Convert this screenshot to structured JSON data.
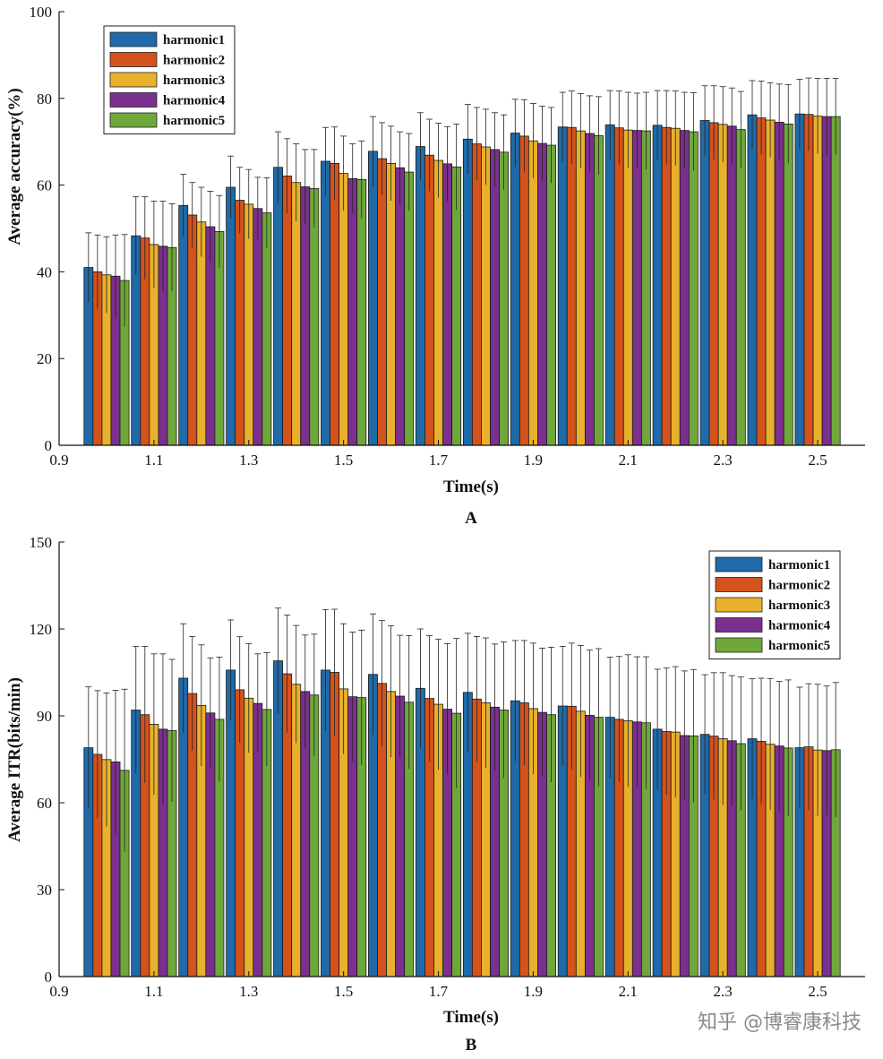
{
  "colors": {
    "harmonic1": "#1f6aa8",
    "harmonic2": "#d4531c",
    "harmonic3": "#e9b12b",
    "harmonic4": "#7b2f8e",
    "harmonic5": "#6fa83a"
  },
  "watermark": "知乎 @博睿康科技",
  "chart_data": [
    {
      "type": "bar",
      "panel_label": "A",
      "title": "",
      "xlabel": "Time(s)",
      "ylabel": "Average accuracy(%)",
      "xlim": [
        0.9,
        2.6
      ],
      "ylim": [
        0,
        100
      ],
      "xticks": [
        "0.9",
        "1.1",
        "1.3",
        "1.5",
        "1.7",
        "1.9",
        "2.1",
        "2.3",
        "2.5"
      ],
      "yticks": [
        "0",
        "20",
        "40",
        "60",
        "80",
        "100"
      ],
      "legend_position": "top-left",
      "categories": [
        1.0,
        1.1,
        1.2,
        1.3,
        1.4,
        1.5,
        1.6,
        1.7,
        1.8,
        1.9,
        2.0,
        2.1,
        2.2,
        2.3,
        2.4,
        2.5
      ],
      "series": [
        {
          "name": "harmonic1",
          "values": [
            41.0,
            48.3,
            55.3,
            59.5,
            64.1,
            65.5,
            67.8,
            68.9,
            70.6,
            72.0,
            73.4,
            73.9,
            73.8,
            74.9,
            76.2,
            76.4
          ],
          "errors": [
            8.0,
            9.0,
            7.2,
            7.2,
            8.2,
            7.8,
            8.0,
            7.8,
            8.0,
            7.8,
            8.0,
            7.9,
            8.0,
            8.0,
            7.9,
            8.0
          ]
        },
        {
          "name": "harmonic2",
          "values": [
            40.0,
            47.8,
            53.1,
            56.5,
            62.1,
            65.0,
            66.1,
            66.9,
            69.5,
            71.3,
            73.3,
            73.2,
            73.3,
            74.4,
            75.5,
            76.3
          ],
          "errors": [
            8.5,
            9.5,
            7.5,
            7.6,
            8.6,
            8.4,
            8.3,
            8.3,
            8.4,
            8.4,
            8.4,
            8.5,
            8.5,
            8.5,
            8.5,
            8.4
          ]
        },
        {
          "name": "harmonic3",
          "values": [
            39.3,
            46.3,
            51.5,
            55.6,
            60.6,
            62.7,
            65.0,
            65.7,
            68.8,
            70.2,
            72.5,
            72.7,
            73.1,
            74.0,
            75.0,
            75.9
          ],
          "errors": [
            8.8,
            10.0,
            8.0,
            8.0,
            8.9,
            8.6,
            8.6,
            8.6,
            8.7,
            8.6,
            8.6,
            8.7,
            8.6,
            8.7,
            8.6,
            8.7
          ]
        },
        {
          "name": "harmonic4",
          "values": [
            39.0,
            45.9,
            50.4,
            54.6,
            59.6,
            61.5,
            64.0,
            64.9,
            68.2,
            69.6,
            71.9,
            72.6,
            72.6,
            73.6,
            74.5,
            75.8
          ],
          "errors": [
            9.5,
            10.4,
            8.2,
            7.2,
            8.6,
            8.0,
            8.3,
            8.6,
            8.5,
            8.6,
            8.7,
            8.6,
            8.8,
            8.8,
            8.8,
            8.8
          ]
        },
        {
          "name": "harmonic5",
          "values": [
            38.0,
            45.6,
            49.3,
            53.6,
            59.2,
            61.3,
            63.0,
            64.2,
            67.6,
            69.2,
            71.4,
            72.5,
            72.3,
            72.8,
            74.1,
            75.8
          ],
          "errors": [
            10.6,
            10.1,
            8.3,
            8.1,
            9.0,
            8.9,
            8.9,
            9.9,
            8.6,
            8.7,
            9.0,
            8.9,
            9.0,
            8.8,
            9.1,
            8.8
          ]
        }
      ]
    },
    {
      "type": "bar",
      "panel_label": "B",
      "title": "",
      "xlabel": "Time(s)",
      "ylabel": "Average ITR(bits/min)",
      "xlim": [
        0.9,
        2.6
      ],
      "ylim": [
        0,
        150
      ],
      "xticks": [
        "0.9",
        "1.1",
        "1.3",
        "1.5",
        "1.7",
        "1.9",
        "2.1",
        "2.3",
        "2.5"
      ],
      "yticks": [
        "0",
        "30",
        "60",
        "90",
        "120",
        "150"
      ],
      "legend_position": "top-right",
      "categories": [
        1.0,
        1.1,
        1.2,
        1.3,
        1.4,
        1.5,
        1.6,
        1.7,
        1.8,
        1.9,
        2.0,
        2.1,
        2.2,
        2.3,
        2.4,
        2.5
      ],
      "series": [
        {
          "name": "harmonic1",
          "values": [
            79.0,
            92.0,
            103.0,
            105.8,
            109.0,
            105.8,
            104.3,
            99.5,
            98.1,
            95.2,
            93.4,
            89.5,
            85.4,
            83.6,
            82.1,
            79.0
          ],
          "errors": [
            21.0,
            22.0,
            18.8,
            17.3,
            18.2,
            20.9,
            20.9,
            20.5,
            20.4,
            20.8,
            20.6,
            20.8,
            20.7,
            20.6,
            20.7,
            20.9
          ]
        },
        {
          "name": "harmonic2",
          "values": [
            76.7,
            90.4,
            97.7,
            99.0,
            104.5,
            105.0,
            101.2,
            96.0,
            95.8,
            94.5,
            93.3,
            88.8,
            84.6,
            83.0,
            81.2,
            79.3
          ],
          "errors": [
            22.0,
            23.6,
            19.7,
            18.3,
            20.3,
            21.8,
            21.7,
            21.7,
            21.6,
            21.5,
            21.8,
            21.7,
            21.9,
            21.9,
            21.8,
            21.8
          ]
        },
        {
          "name": "harmonic3",
          "values": [
            74.9,
            87.1,
            93.6,
            96.1,
            100.9,
            99.3,
            98.4,
            94.0,
            94.5,
            92.5,
            91.6,
            88.3,
            84.4,
            82.1,
            80.2,
            78.2
          ],
          "errors": [
            23.0,
            24.3,
            20.9,
            18.8,
            20.3,
            22.5,
            22.7,
            22.5,
            22.4,
            22.6,
            22.7,
            22.8,
            22.6,
            22.8,
            22.7,
            22.7
          ]
        },
        {
          "name": "harmonic4",
          "values": [
            74.1,
            85.4,
            91.0,
            94.3,
            98.4,
            96.6,
            96.8,
            92.3,
            93.0,
            91.2,
            90.2,
            87.9,
            83.2,
            81.4,
            79.6,
            78.0
          ],
          "errors": [
            24.7,
            26.0,
            19.0,
            17.1,
            19.5,
            22.3,
            21.0,
            22.6,
            21.8,
            22.2,
            22.5,
            22.5,
            22.3,
            22.5,
            22.3,
            22.3
          ]
        },
        {
          "name": "harmonic5",
          "values": [
            71.2,
            84.9,
            88.8,
            92.2,
            97.2,
            96.3,
            94.7,
            90.9,
            92.0,
            90.4,
            89.5,
            87.6,
            83.1,
            80.4,
            78.9,
            78.3
          ],
          "errors": [
            28.0,
            24.6,
            21.5,
            19.6,
            21.0,
            23.3,
            23.0,
            25.8,
            23.5,
            23.3,
            23.7,
            22.8,
            22.9,
            23.0,
            23.5,
            23.2
          ]
        }
      ]
    }
  ]
}
